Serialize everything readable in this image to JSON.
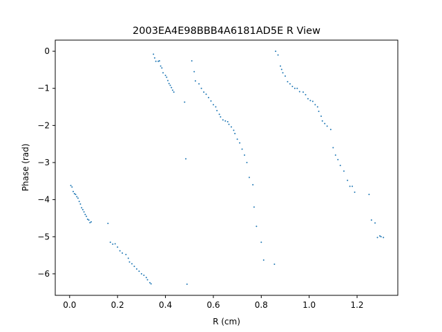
{
  "chart_data": {
    "type": "scatter",
    "title": "2003EA4E98BBB4A6181AD5E R View",
    "xlabel": "R (cm)",
    "ylabel": "Phase (rad)",
    "xlim": [
      -0.06,
      1.37
    ],
    "ylim": [
      -6.58,
      0.3
    ],
    "xticks": [
      0.0,
      0.2,
      0.4,
      0.6,
      0.8,
      1.0,
      1.2
    ],
    "xtick_labels": [
      "0.0",
      "0.2",
      "0.4",
      "0.6",
      "0.8",
      "1.0",
      "1.2"
    ],
    "yticks": [
      0,
      -1,
      -2,
      -3,
      -4,
      -5,
      -6
    ],
    "ytick_labels": [
      "0",
      "−1",
      "−2",
      "−3",
      "−4",
      "−5",
      "−6"
    ],
    "grid": false,
    "marker_color": "#1f77b4",
    "points": [
      [
        0.005,
        -3.62
      ],
      [
        0.01,
        -3.66
      ],
      [
        0.015,
        -3.78
      ],
      [
        0.02,
        -3.84
      ],
      [
        0.025,
        -3.86
      ],
      [
        0.03,
        -3.92
      ],
      [
        0.035,
        -3.96
      ],
      [
        0.04,
        -4.05
      ],
      [
        0.045,
        -4.12
      ],
      [
        0.05,
        -4.22
      ],
      [
        0.055,
        -4.27
      ],
      [
        0.06,
        -4.33
      ],
      [
        0.065,
        -4.4
      ],
      [
        0.07,
        -4.45
      ],
      [
        0.075,
        -4.53
      ],
      [
        0.08,
        -4.55
      ],
      [
        0.085,
        -4.62
      ],
      [
        0.09,
        -4.6
      ],
      [
        0.16,
        -4.64
      ],
      [
        0.17,
        -5.15
      ],
      [
        0.18,
        -5.2
      ],
      [
        0.19,
        -5.19
      ],
      [
        0.2,
        -5.28
      ],
      [
        0.21,
        -5.38
      ],
      [
        0.22,
        -5.44
      ],
      [
        0.235,
        -5.48
      ],
      [
        0.245,
        -5.58
      ],
      [
        0.25,
        -5.68
      ],
      [
        0.26,
        -5.73
      ],
      [
        0.27,
        -5.8
      ],
      [
        0.28,
        -5.87
      ],
      [
        0.29,
        -5.93
      ],
      [
        0.3,
        -6.0
      ],
      [
        0.31,
        -6.04
      ],
      [
        0.32,
        -6.1
      ],
      [
        0.325,
        -6.16
      ],
      [
        0.335,
        -6.24
      ],
      [
        0.34,
        -6.27
      ],
      [
        0.35,
        -0.08
      ],
      [
        0.355,
        -0.18
      ],
      [
        0.36,
        -0.27
      ],
      [
        0.37,
        -0.27
      ],
      [
        0.375,
        -0.26
      ],
      [
        0.38,
        -0.4
      ],
      [
        0.385,
        -0.45
      ],
      [
        0.39,
        -0.58
      ],
      [
        0.4,
        -0.65
      ],
      [
        0.405,
        -0.7
      ],
      [
        0.41,
        -0.79
      ],
      [
        0.415,
        -0.87
      ],
      [
        0.42,
        -0.92
      ],
      [
        0.425,
        -0.98
      ],
      [
        0.43,
        -1.05
      ],
      [
        0.435,
        -1.1
      ],
      [
        0.48,
        -1.37
      ],
      [
        0.485,
        -2.9
      ],
      [
        0.49,
        -6.28
      ],
      [
        0.51,
        -0.26
      ],
      [
        0.52,
        -0.55
      ],
      [
        0.525,
        -0.8
      ],
      [
        0.54,
        -0.88
      ],
      [
        0.55,
        -1.0
      ],
      [
        0.56,
        -1.1
      ],
      [
        0.57,
        -1.16
      ],
      [
        0.58,
        -1.25
      ],
      [
        0.59,
        -1.34
      ],
      [
        0.6,
        -1.44
      ],
      [
        0.61,
        -1.5
      ],
      [
        0.615,
        -1.6
      ],
      [
        0.625,
        -1.7
      ],
      [
        0.63,
        -1.77
      ],
      [
        0.64,
        -1.85
      ],
      [
        0.65,
        -1.88
      ],
      [
        0.66,
        -1.9
      ],
      [
        0.665,
        -1.97
      ],
      [
        0.675,
        -2.04
      ],
      [
        0.685,
        -2.13
      ],
      [
        0.69,
        -2.22
      ],
      [
        0.7,
        -2.37
      ],
      [
        0.71,
        -2.47
      ],
      [
        0.72,
        -2.64
      ],
      [
        0.73,
        -2.8
      ],
      [
        0.74,
        -3.0
      ],
      [
        0.75,
        -3.4
      ],
      [
        0.765,
        -3.6
      ],
      [
        0.77,
        -4.2
      ],
      [
        0.78,
        -4.72
      ],
      [
        0.8,
        -5.15
      ],
      [
        0.81,
        -5.63
      ],
      [
        0.855,
        -5.74
      ],
      [
        0.86,
        0.0
      ],
      [
        0.87,
        -0.1
      ],
      [
        0.88,
        -0.4
      ],
      [
        0.885,
        -0.49
      ],
      [
        0.89,
        -0.58
      ],
      [
        0.9,
        -0.67
      ],
      [
        0.91,
        -0.82
      ],
      [
        0.92,
        -0.88
      ],
      [
        0.93,
        -0.95
      ],
      [
        0.94,
        -1.0
      ],
      [
        0.95,
        -1.0
      ],
      [
        0.96,
        -1.09
      ],
      [
        0.975,
        -1.1
      ],
      [
        0.985,
        -1.17
      ],
      [
        0.995,
        -1.28
      ],
      [
        1.005,
        -1.33
      ],
      [
        1.015,
        -1.35
      ],
      [
        1.025,
        -1.44
      ],
      [
        1.035,
        -1.5
      ],
      [
        1.04,
        -1.62
      ],
      [
        1.05,
        -1.75
      ],
      [
        1.055,
        -1.88
      ],
      [
        1.065,
        -1.95
      ],
      [
        1.075,
        -2.02
      ],
      [
        1.09,
        -2.11
      ],
      [
        1.1,
        -2.6
      ],
      [
        1.11,
        -2.8
      ],
      [
        1.12,
        -2.92
      ],
      [
        1.13,
        -3.08
      ],
      [
        1.145,
        -3.23
      ],
      [
        1.16,
        -3.48
      ],
      [
        1.17,
        -3.64
      ],
      [
        1.18,
        -3.64
      ],
      [
        1.19,
        -3.8
      ],
      [
        1.25,
        -3.86
      ],
      [
        1.26,
        -4.55
      ],
      [
        1.275,
        -4.63
      ],
      [
        1.285,
        -5.02
      ],
      [
        1.295,
        -4.98
      ],
      [
        1.3,
        -5.0
      ],
      [
        1.31,
        -5.02
      ]
    ]
  }
}
